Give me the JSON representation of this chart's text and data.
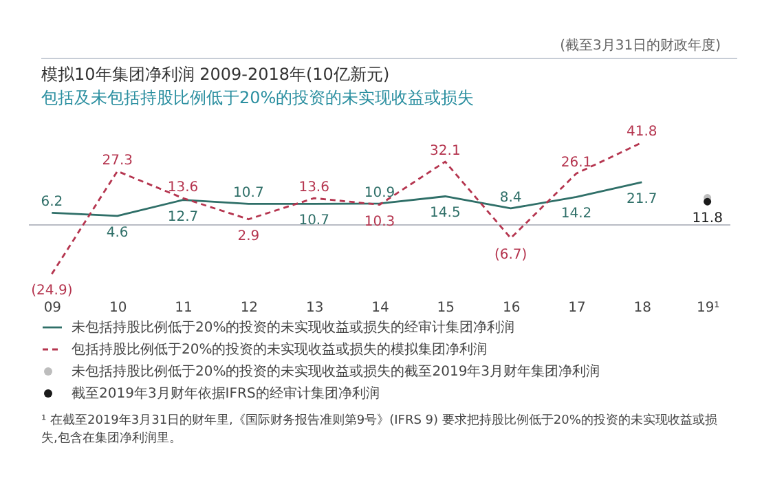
{
  "chart_data": {
    "type": "line",
    "title": "模拟10年集团净利润 2009-2018年(10亿新元)",
    "subtitle": "包括及未包括持股比例低于20%的投资的未实现收益或损失",
    "annotations": [
      "(截至3月31日的财政年度)",
      "¹ 在截至2019年3月31日的财年里,《国际财务报告准则第9号》(IFRS 9) 要求把持股比例低于20%的投资的未实现收益或损失,包含在集团净利润里。"
    ],
    "categories": [
      "09",
      "10",
      "11",
      "12",
      "13",
      "14",
      "15",
      "16",
      "17",
      "18",
      "19¹"
    ],
    "series": [
      {
        "name": "未包括持股比例低于20%的投资的未实现收益或损失的经审计集团净利润",
        "line_style": "solid",
        "color": "#2f6f68",
        "values": [
          6.2,
          4.6,
          12.7,
          10.7,
          10.7,
          10.9,
          14.5,
          8.4,
          14.2,
          21.7,
          null
        ],
        "value_labels": [
          "6.2",
          "4.6",
          "12.7",
          "10.7",
          "10.7",
          "10.9",
          "14.5",
          "8.4",
          "14.2",
          "21.7",
          null
        ]
      },
      {
        "name": "包括持股比例低于20%的投资的未实现收益或损失的模拟集团净利润",
        "line_style": "dashed",
        "color": "#b5354f",
        "values": [
          -24.9,
          27.3,
          13.6,
          2.9,
          13.6,
          10.3,
          32.1,
          -6.7,
          26.1,
          41.8,
          null
        ],
        "value_labels": [
          "(24.9)",
          "27.3",
          "13.6",
          "2.9",
          "13.6",
          "10.3",
          "32.1",
          "(6.7)",
          "26.1",
          "41.8",
          null
        ]
      },
      {
        "name": "未包括持股比例低于20%的投资的未实现收益或损失的截至2019年3月财年集团净利润",
        "type": "scatter",
        "marker": "circle",
        "color": "#bdbdbd",
        "x": [
          "19¹"
        ],
        "values": [
          13.8
        ]
      },
      {
        "name": "截至2019年3月财年依据IFRS的经审计集团净利润",
        "type": "scatter",
        "marker": "circle",
        "color": "#1a1a1a",
        "x": [
          "19¹"
        ],
        "values": [
          11.8
        ],
        "value_labels": [
          "11.8"
        ]
      }
    ],
    "ref_lines": [
      {
        "axis": "y",
        "value": 0,
        "color": "#b8bcc4"
      }
    ],
    "legend": "bottom"
  }
}
